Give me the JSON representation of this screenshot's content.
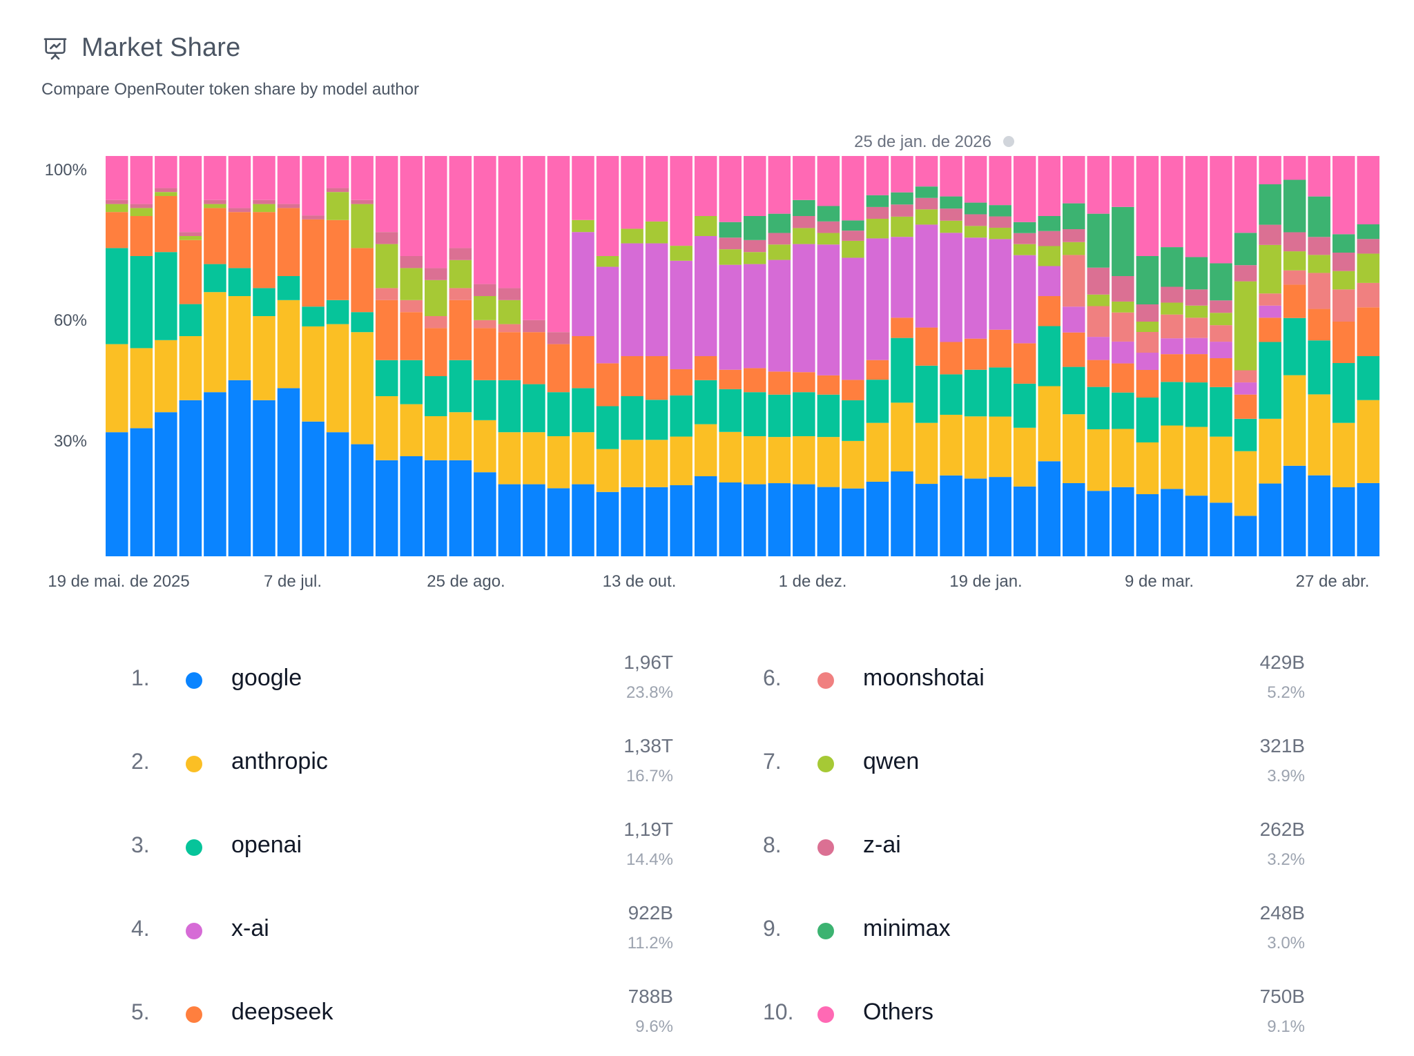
{
  "header": {
    "title": "Market Share",
    "icon": "presentation-chart-icon",
    "subtitle": "Compare OpenRouter token share by model author"
  },
  "chart_data": {
    "type": "bar",
    "stacked": true,
    "normalized": true,
    "y_ticks": [
      "100%",
      "60%",
      "30%"
    ],
    "x_tick_labels": [
      "19 de mai. de 2025",
      "7 de jul.",
      "25 de ago.",
      "13 de out.",
      "1 de dez.",
      "19 de jan.",
      "9 de mar.",
      "27 de abr."
    ],
    "annotation": "25 de jan. de 2026",
    "grid": false,
    "legend_position": "bottom",
    "categories_count": 52,
    "series": [
      {
        "name": "google",
        "values": [
          31,
          32,
          36,
          39,
          41,
          44,
          39,
          42,
          34,
          31,
          28,
          24,
          25,
          24,
          24,
          21,
          18,
          18,
          17,
          18,
          18,
          19,
          19,
          19,
          20,
          19,
          18,
          19,
          18,
          18,
          20,
          19,
          21,
          19,
          20,
          20,
          21,
          19,
          19,
          17,
          17,
          19,
          18,
          17,
          15,
          13,
          10,
          18,
          19,
          18,
          15,
          15
        ]
      },
      {
        "name": "anthropic",
        "values": [
          22,
          20,
          18,
          16,
          25,
          21,
          21,
          22,
          24,
          27,
          28,
          16,
          13,
          11,
          12,
          13,
          13,
          13,
          13,
          13,
          12,
          13,
          13,
          13,
          13,
          13,
          12,
          12,
          12,
          13,
          14,
          15,
          17,
          16,
          15,
          16,
          16,
          16,
          15,
          16,
          16,
          16,
          15,
          16,
          17,
          16,
          16,
          16,
          19,
          18,
          14,
          17
        ]
      },
      {
        "name": "openai",
        "values": [
          24,
          23,
          22,
          8,
          7,
          7,
          7,
          6,
          5,
          6,
          5,
          9,
          11,
          10,
          13,
          10,
          13,
          12,
          11,
          11,
          12,
          12,
          11,
          11,
          11,
          11,
          11,
          11,
          11,
          11,
          12,
          11,
          16,
          15,
          10,
          12,
          13,
          12,
          12,
          11,
          11,
          10,
          13,
          11,
          11,
          12,
          8,
          19,
          12,
          12,
          13,
          9
        ]
      },
      {
        "name": "deepseek",
        "values": [
          9,
          10,
          14,
          16,
          14,
          14,
          19,
          17,
          22,
          20,
          16,
          15,
          12,
          12,
          15,
          13,
          12,
          13,
          12,
          13,
          12,
          11,
          12,
          7,
          6,
          5,
          6,
          6,
          5,
          5,
          6,
          5,
          5,
          10,
          8,
          8,
          10,
          11,
          6,
          8,
          7,
          8,
          8,
          7,
          7,
          7,
          6,
          6,
          7,
          7,
          9,
          10
        ]
      },
      {
        "name": "x-ai",
        "values": [
          0,
          0,
          0,
          0,
          0,
          0,
          0,
          0,
          0,
          0,
          0,
          0,
          0,
          0,
          0,
          0,
          0,
          0,
          0,
          26,
          27,
          31,
          31,
          29,
          30,
          27,
          26,
          29,
          32,
          34,
          36,
          31,
          20,
          27,
          27,
          26,
          24,
          24,
          6,
          6,
          6,
          6,
          5,
          4,
          4,
          4,
          3,
          3,
          0,
          0,
          0,
          0
        ]
      },
      {
        "name": "moonshotai",
        "values": [
          0,
          0,
          0,
          0,
          0,
          0,
          0,
          0,
          0,
          0,
          0,
          3,
          3,
          3,
          3,
          2,
          2,
          0,
          0,
          0,
          0,
          0,
          0,
          0,
          0,
          0,
          0,
          0,
          0,
          0,
          0,
          0,
          0,
          0,
          0,
          0,
          0,
          0,
          0,
          12,
          8,
          8,
          6,
          6,
          5,
          4,
          3,
          3,
          3,
          8,
          7,
          5
        ]
      },
      {
        "name": "qwen",
        "values": [
          2,
          2,
          1,
          1,
          1,
          0,
          2,
          0,
          0,
          7,
          11,
          11,
          8,
          9,
          7,
          6,
          6,
          0,
          0,
          3,
          3,
          4,
          6,
          4,
          5,
          4,
          3,
          4,
          4,
          3,
          5,
          5,
          5,
          4,
          3,
          3,
          3,
          3,
          4,
          3,
          3,
          3,
          3,
          3,
          3,
          3,
          22,
          12,
          4,
          4,
          4,
          6
        ]
      },
      {
        "name": "z-ai",
        "values": [
          1,
          1,
          1,
          1,
          1,
          1,
          1,
          1,
          1,
          1,
          1,
          3,
          3,
          3,
          3,
          3,
          3,
          3,
          3,
          0,
          0,
          0,
          0,
          0,
          0,
          3,
          3,
          3,
          3,
          3,
          3,
          3,
          3,
          3,
          3,
          3,
          3,
          3,
          3,
          3,
          7,
          7,
          5,
          4,
          4,
          3,
          4,
          5,
          4,
          4,
          4,
          3
        ]
      },
      {
        "name": "minimax",
        "values": [
          0,
          0,
          0,
          0,
          0,
          0,
          0,
          0,
          0,
          0,
          0,
          0,
          0,
          0,
          0,
          0,
          0,
          0,
          0,
          0,
          0,
          0,
          0,
          0,
          0,
          4,
          6,
          5,
          4,
          4,
          3,
          3,
          3,
          3,
          3,
          3,
          3,
          3,
          3,
          6,
          14,
          19,
          14,
          10,
          8,
          9,
          8,
          10,
          11,
          9,
          4,
          3
        ]
      },
      {
        "name": "Others",
        "values": [
          11,
          12,
          8,
          19,
          11,
          13,
          11,
          12,
          15,
          8,
          11,
          19,
          25,
          28,
          23,
          32,
          33,
          41,
          44,
          16,
          28,
          20,
          18,
          24,
          15,
          17,
          15,
          15,
          11,
          13,
          19,
          10,
          9,
          8,
          10,
          12,
          13,
          18,
          12,
          11,
          15,
          14,
          29,
          23,
          25,
          26,
          19,
          7,
          5,
          9,
          17,
          14
        ]
      }
    ]
  },
  "legend": [
    {
      "rank": "1.",
      "name": "google",
      "value": "1,96T",
      "pct": "23.8%",
      "color": "#0a84ff"
    },
    {
      "rank": "2.",
      "name": "anthropic",
      "value": "1,38T",
      "pct": "16.7%",
      "color": "#fbbf24"
    },
    {
      "rank": "3.",
      "name": "openai",
      "value": "1,19T",
      "pct": "14.4%",
      "color": "#06c49a"
    },
    {
      "rank": "4.",
      "name": "x-ai",
      "value": "922B",
      "pct": "11.2%",
      "color": "#d66bd6"
    },
    {
      "rank": "5.",
      "name": "deepseek",
      "value": "788B",
      "pct": "9.6%",
      "color": "#ff7f3e"
    },
    {
      "rank": "6.",
      "name": "moonshotai",
      "value": "429B",
      "pct": "5.2%",
      "color": "#f08080"
    },
    {
      "rank": "7.",
      "name": "qwen",
      "value": "321B",
      "pct": "3.9%",
      "color": "#a6c935"
    },
    {
      "rank": "8.",
      "name": "z-ai",
      "value": "262B",
      "pct": "3.2%",
      "color": "#db7093"
    },
    {
      "rank": "9.",
      "name": "minimax",
      "value": "248B",
      "pct": "3.0%",
      "color": "#3cb371"
    },
    {
      "rank": "10.",
      "name": "Others",
      "value": "750B",
      "pct": "9.1%",
      "color": "#ff69b4"
    }
  ]
}
